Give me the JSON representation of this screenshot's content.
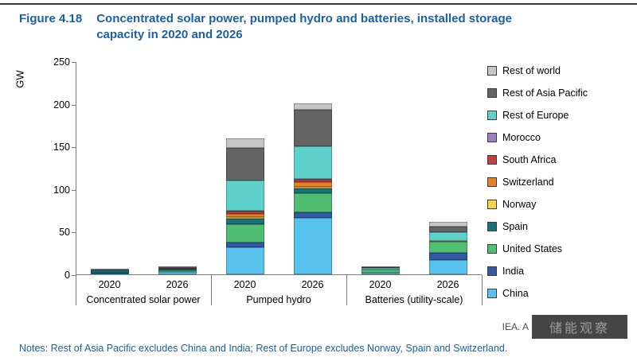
{
  "header": {
    "figure_label": "Figure 4.18",
    "title": "Concentrated solar power, pumped hydro and batteries, installed storage capacity in 2020 and 2026"
  },
  "footer": {
    "notes": "Notes: Rest of Asia Pacific excludes China and India; Rest of Europe excludes Norway, Spain and Switzerland.",
    "source_visible": "IEA. A",
    "watermark": "储能观察"
  },
  "chart_data": {
    "type": "bar",
    "stacked": true,
    "title": "Concentrated solar power, pumped hydro and batteries, installed storage capacity in 2020 and 2026",
    "ylabel": "GW",
    "ylim": [
      0,
      250
    ],
    "yticks": [
      0,
      50,
      100,
      150,
      200,
      250
    ],
    "grid": false,
    "legend_position": "right",
    "bar_labels": [
      "2020",
      "2026",
      "2020",
      "2026",
      "2020",
      "2026"
    ],
    "groups": [
      {
        "label": "Concentrated solar power",
        "bars": [
          "2020",
          "2026"
        ]
      },
      {
        "label": "Pumped hydro",
        "bars": [
          "2020",
          "2026"
        ]
      },
      {
        "label": "Batteries (utility-scale)",
        "bars": [
          "2020",
          "2026"
        ]
      }
    ],
    "series": [
      {
        "name": "China",
        "color": "#59c3f0",
        "values": [
          0.4,
          2.5,
          32,
          66,
          2,
          17
        ]
      },
      {
        "name": "India",
        "color": "#3258a8",
        "values": [
          0.2,
          0.3,
          5,
          7,
          0.3,
          8
        ]
      },
      {
        "name": "United States",
        "color": "#50bd72",
        "values": [
          1.7,
          1.8,
          22,
          22,
          3.5,
          13
        ]
      },
      {
        "name": "Spain",
        "color": "#17727b",
        "values": [
          2.3,
          2.3,
          6,
          6,
          0.2,
          0.5
        ]
      },
      {
        "name": "Norway",
        "color": "#f6d44c",
        "values": [
          0,
          0,
          2,
          2,
          0,
          0.2
        ]
      },
      {
        "name": "Switzerland",
        "color": "#e88024",
        "values": [
          0,
          0,
          4,
          5,
          0,
          0.3
        ]
      },
      {
        "name": "South Africa",
        "color": "#bf3f42",
        "values": [
          0.5,
          0.6,
          3,
          3,
          0.1,
          0.2
        ]
      },
      {
        "name": "Morocco",
        "color": "#9e7fc1",
        "values": [
          0.5,
          0.8,
          0.5,
          1,
          0,
          0.1
        ]
      },
      {
        "name": "Rest of Europe",
        "color": "#5ed1cb",
        "values": [
          0.1,
          0.2,
          36,
          38,
          1.5,
          10
        ]
      },
      {
        "name": "Rest of Asia Pacific",
        "color": "#646464",
        "values": [
          0.3,
          0.4,
          38,
          43,
          1,
          7
        ]
      },
      {
        "name": "Rest of world",
        "color": "#c6c6c6",
        "values": [
          0.4,
          0.6,
          11,
          8,
          0.8,
          5
        ]
      }
    ],
    "stack_order": "bottom-to-top as listed",
    "legend_top_to_bottom": [
      "Rest of world",
      "Rest of Asia Pacific",
      "Rest of Europe",
      "Morocco",
      "South Africa",
      "Switzerland",
      "Norway",
      "Spain",
      "United States",
      "India",
      "China"
    ],
    "bar_totals_gw": [
      6.4,
      9.5,
      159.5,
      201,
      9.4,
      61.3
    ]
  }
}
